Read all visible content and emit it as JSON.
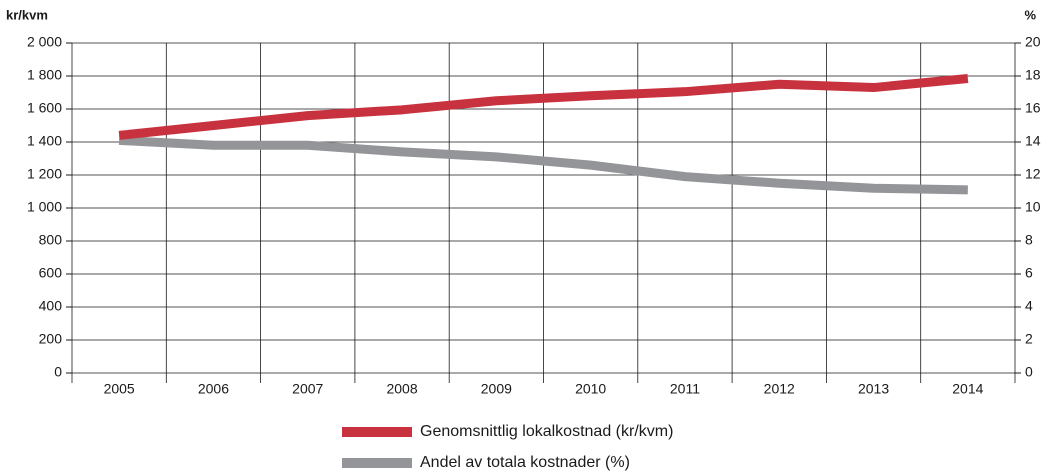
{
  "chart_data": {
    "type": "line",
    "y_label": "kr/kvm",
    "y2_label": "%",
    "categories": [
      "2005",
      "2006",
      "2007",
      "2008",
      "2009",
      "2010",
      "2011",
      "2012",
      "2013",
      "2014"
    ],
    "series": [
      {
        "name": "Genomsnittlig lokalkostnad (kr/kvm)",
        "color": "#c8323e",
        "axis": "y",
        "values": [
          1440,
          1500,
          1560,
          1595,
          1650,
          1680,
          1705,
          1750,
          1730,
          1785
        ]
      },
      {
        "name": "Andel av totala kostnader (%)",
        "color": "#939598",
        "axis": "y2",
        "values": [
          14.1,
          13.8,
          13.8,
          13.4,
          13.1,
          12.6,
          11.9,
          11.5,
          11.2,
          11.1
        ]
      }
    ],
    "ylim": [
      0,
      2000
    ],
    "yticks": [
      0,
      200,
      400,
      600,
      800,
      {
        "value": 1000,
        "label": "1 000"
      },
      {
        "value": 1200,
        "label": "1 200"
      },
      {
        "value": 1400,
        "label": "1 400"
      },
      {
        "value": 1600,
        "label": "1 600"
      },
      {
        "value": 1800,
        "label": "1 800"
      },
      {
        "value": 2000,
        "label": "2 000"
      }
    ],
    "y2lim": [
      0,
      20
    ],
    "y2ticks": [
      0,
      2,
      4,
      6,
      8,
      10,
      12,
      14,
      16,
      18,
      20
    ],
    "grid": true,
    "legend": "bottom"
  }
}
